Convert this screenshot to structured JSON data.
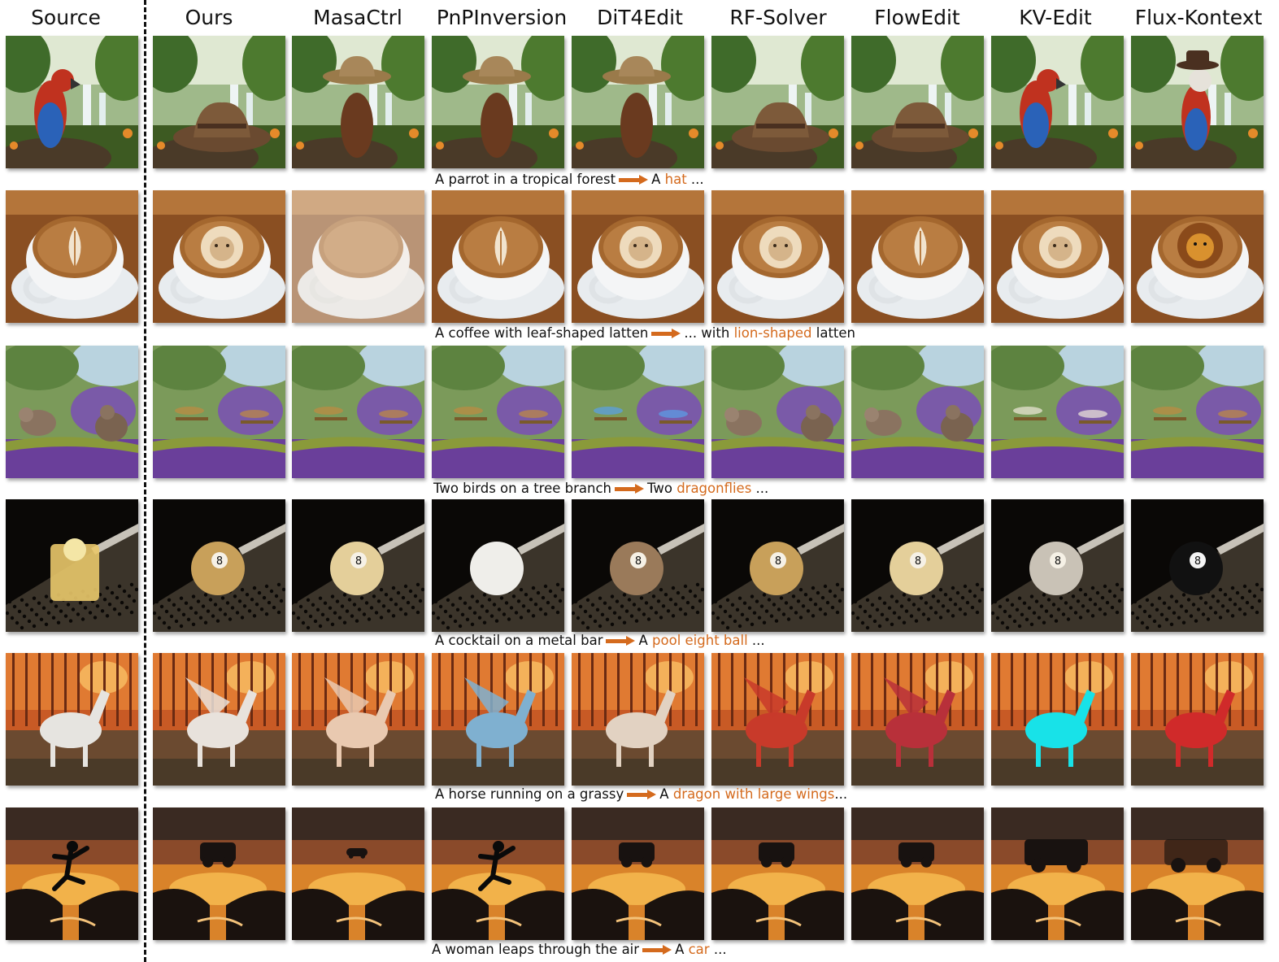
{
  "columns": [
    "Source",
    "Ours",
    "MasaCtrl",
    "PnPInversion",
    "DiT4Edit",
    "RF-Solver",
    "FlowEdit",
    "KV-Edit",
    "Flux-Kontext"
  ],
  "rows": [
    {
      "scene": "parrot-forest",
      "subjects": [
        "parrot",
        "hat",
        "hat-figure",
        "hat-figure",
        "hat-figure",
        "hat",
        "hat",
        "parrot",
        "parrot-hat"
      ],
      "caption": {
        "source": "A parrot in a tropical forest",
        "prefix": "A ",
        "highlight": "hat",
        "suffix": " ..."
      }
    },
    {
      "scene": "coffee-latte",
      "subjects": [
        "leaf",
        "lion",
        "cup-blur",
        "swirl",
        "tiger-art",
        "lion",
        "leaf",
        "lion",
        "lion-real"
      ],
      "caption": {
        "source": "A coffee with leaf-shaped latten",
        "prefix": "... with ",
        "highlight": "lion-shaped",
        "suffix": " latten"
      }
    },
    {
      "scene": "birds-branch",
      "subjects": [
        "birds",
        "dragonflies",
        "dragonflies",
        "dragonflies",
        "flies-blue",
        "birds",
        "birds",
        "moths",
        "dragonflies"
      ],
      "caption": {
        "source": "Two birds on a tree branch",
        "prefix": "Two ",
        "highlight": "dragonflies",
        "suffix": " ..."
      }
    },
    {
      "scene": "metal-bar",
      "subjects": [
        "cocktail",
        "ball-gold",
        "ball-cream",
        "ball-white",
        "ball-bronze",
        "ball-gold",
        "ball-cream",
        "ball-silver",
        "ball-black"
      ],
      "caption": {
        "source": "A cocktail on a metal bar",
        "prefix": "A ",
        "highlight": "pool eight ball",
        "suffix": " ..."
      }
    },
    {
      "scene": "sunset-field",
      "subjects": [
        "horse-white",
        "dragon-white",
        "dragon-pale",
        "dragon-blue",
        "horse-pale",
        "dragon-small",
        "dragon-red",
        "horse-cyan",
        "horse-red"
      ],
      "caption": {
        "source": "A horse running on a grassy",
        "prefix": "A ",
        "highlight": "dragon with large wings",
        "suffix": "..."
      }
    },
    {
      "scene": "sunset-sky",
      "subjects": [
        "woman",
        "car",
        "car-small",
        "woman",
        "car",
        "car",
        "car",
        "car-silhouette",
        "car-blur"
      ],
      "caption": {
        "source": "A woman leaps through the air",
        "prefix": "A ",
        "highlight": "car",
        "suffix": " ..."
      }
    }
  ],
  "colors": {
    "highlight": "#d46a1d",
    "text": "#111111"
  }
}
